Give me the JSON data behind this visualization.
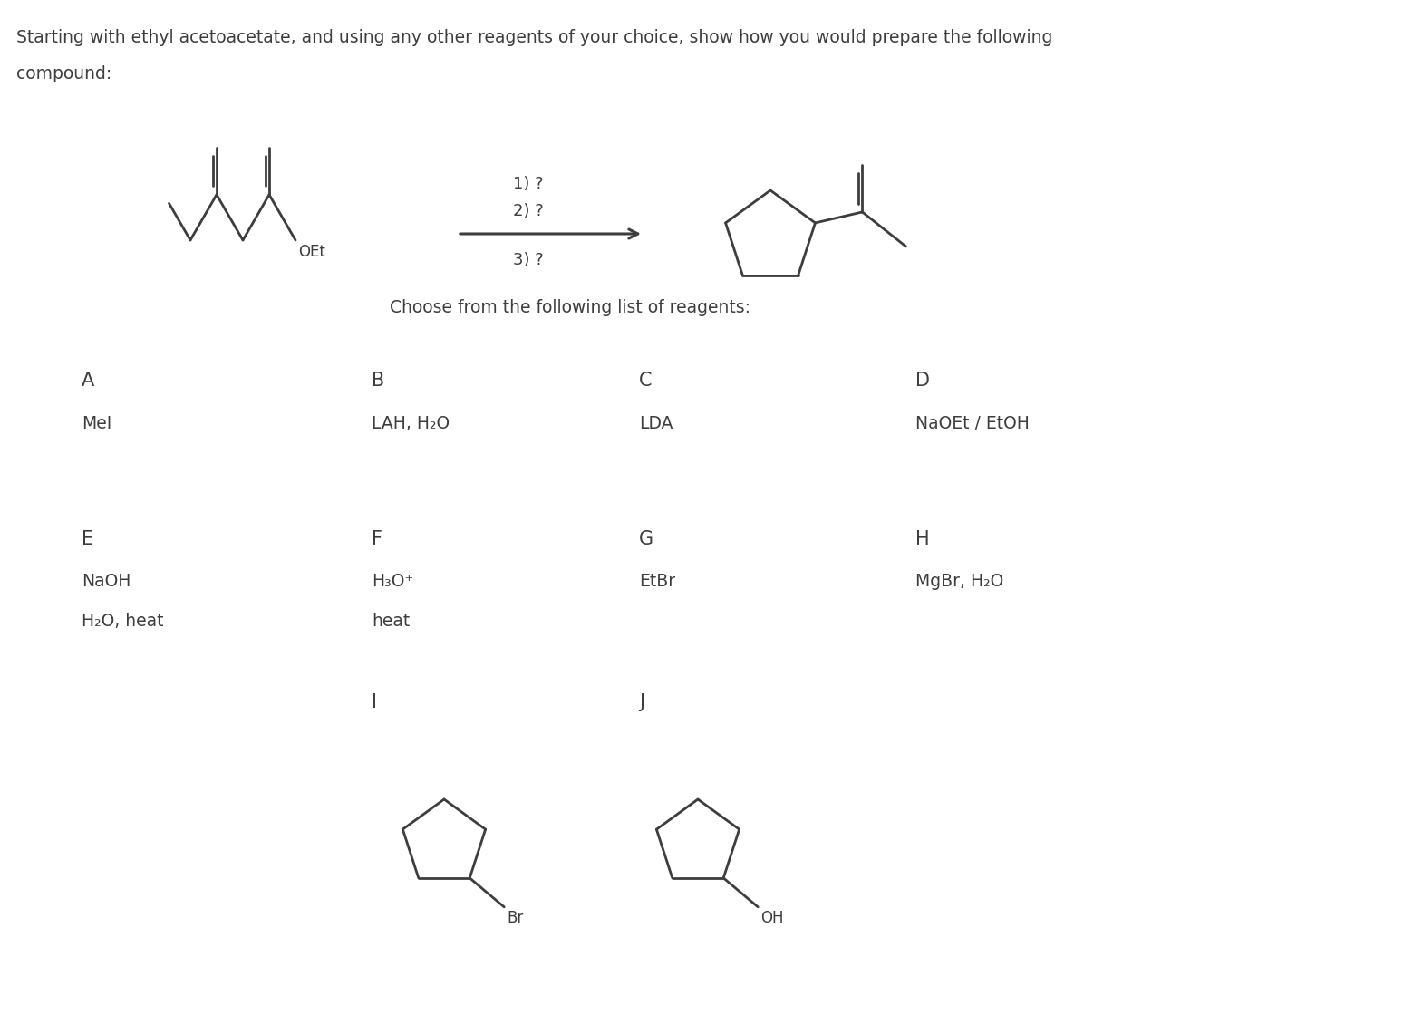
{
  "bg_color": "#ffffff",
  "text_color": "#3d3d3d",
  "title_line1": "Starting with ethyl acetoacetate, and using any other reagents of your choice, show how you would prepare the following",
  "title_line2": "compound:",
  "choose_text": "Choose from the following list of reagents:",
  "reagents": {
    "A_text": "MeI",
    "B_text": "LAH, H₂O",
    "C_text": "LDA",
    "D_text": "NaOEt / EtOH",
    "E_text1": "NaOH",
    "E_text2": "H₂O, heat",
    "F_text1": "H₃O⁺",
    "F_text2": "heat",
    "G_text": "EtBr",
    "H_text": "MgBr, H₂O"
  },
  "arrow_label1": "1) ?",
  "arrow_label2": "2) ?",
  "arrow_label3": "3) ?"
}
